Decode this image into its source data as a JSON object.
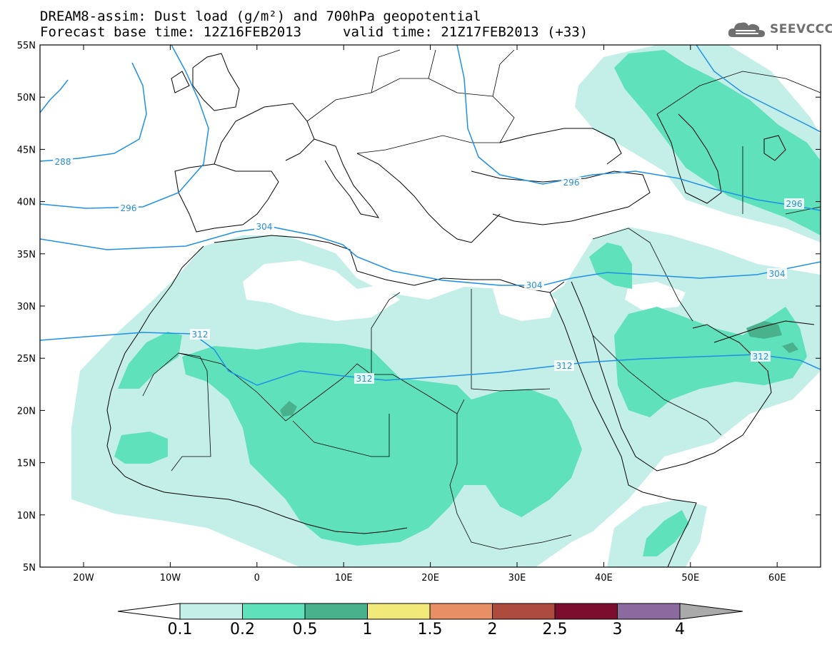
{
  "header": {
    "title": "DREAM8-assim: Dust load (g/m²) and 700hPa geopotential",
    "forecast": "Forecast base time: 12Z16FEB2013",
    "valid": "valid time: 21Z17FEB2013 (+33)"
  },
  "logo": {
    "text": "SEEVCCC",
    "icon": "cloud-icon"
  },
  "map": {
    "lat_labels": [
      "55N",
      "50N",
      "45N",
      "40N",
      "35N",
      "30N",
      "25N",
      "20N",
      "15N",
      "10N",
      "5N"
    ],
    "lon_labels": [
      "20W",
      "10W",
      "0",
      "10E",
      "20E",
      "30E",
      "40E",
      "50E",
      "60E"
    ],
    "contour_labels": [
      "288",
      "296",
      "304",
      "304",
      "304",
      "312",
      "312",
      "312",
      "312",
      "296",
      "296"
    ],
    "contour_color": "#1e90e6"
  },
  "colorbar": {
    "labels": [
      "0.1",
      "0.2",
      "0.5",
      "1",
      "1.5",
      "2",
      "2.5",
      "3",
      "4"
    ],
    "colors": [
      "#ffffff",
      "#c4efe8",
      "#5fe1bb",
      "#49b28d",
      "#f1e87a",
      "#e98f66",
      "#ae4b3f",
      "#7b0d2e",
      "#8b6a9f",
      "#aaaaaa"
    ]
  }
}
